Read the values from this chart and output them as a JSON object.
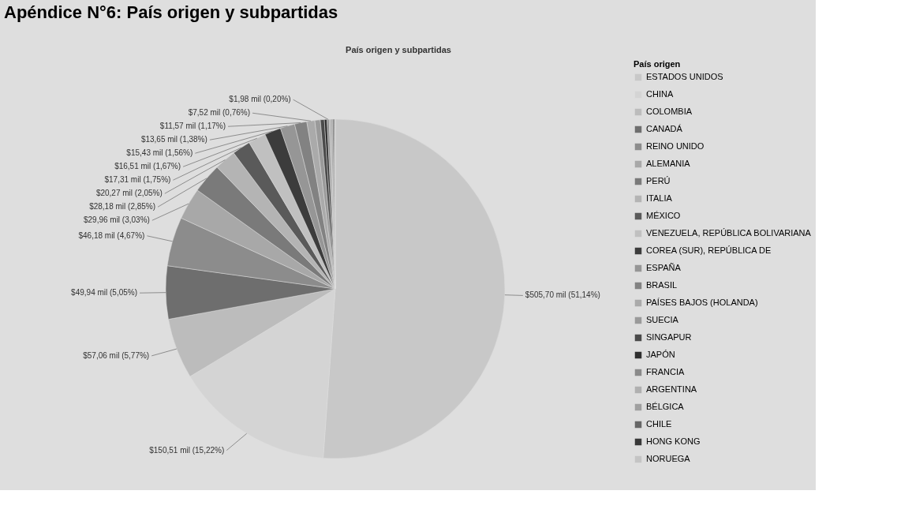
{
  "chart_data": {
    "type": "pie",
    "title": "Apéndice N°6:        País origen y subpartidas",
    "subtitle": "País origen y subpartidas",
    "legend_title": "País origen",
    "legend": "right",
    "categories": [
      "ESTADOS UNIDOS",
      "CHINA",
      "COLOMBIA",
      "CANADÁ",
      "REINO UNIDO",
      "ALEMANIA",
      "PERÚ",
      "ITALIA",
      "MÉXICO",
      "VENEZUELA, REPÚBLICA BOLIVARIANA",
      "COREA (SUR), REPÚBLICA DE",
      "ESPAÑA",
      "BRASIL",
      "PAÍSES BAJOS (HOLANDA)",
      "SUECIA",
      "SINGAPUR",
      "JAPÓN",
      "FRANCIA",
      "ARGENTINA",
      "BÉLGICA",
      "CHILE",
      "HONG KONG",
      "NORUEGA"
    ],
    "values": [
      51.14,
      15.22,
      5.77,
      5.05,
      4.67,
      3.03,
      2.85,
      2.05,
      1.75,
      1.67,
      1.56,
      1.38,
      1.17,
      0.76,
      0.52,
      0.38,
      0.25,
      0.2,
      0.18,
      0.15,
      0.11,
      0.08,
      0.06
    ],
    "value_labels": [
      "$505,70 mil (51,14%)",
      "$150,51 mil (15,22%)",
      "$57,06 mil (5,77%)",
      "$49,94 mil (5,05%)",
      "$46,18 mil (4,67%)",
      "$29,96 mil (3,03%)",
      "$28,18 mil (2,85%)",
      "$20,27 mil (2,05%)",
      "$17,31 mil (1,75%)",
      "$16,51 mil (1,67%)",
      "$15,43 mil (1,56%)",
      "$13,65 mil (1,38%)",
      "$11,57 mil (1,17%)",
      "$7,52 mil (0,76%)",
      null,
      null,
      null,
      "$1,98 mil (0,20%)",
      null,
      null,
      null,
      null,
      null
    ],
    "colors": [
      "#c8c8c8",
      "#d4d4d4",
      "#bcbcbc",
      "#6e6e6e",
      "#8c8c8c",
      "#a8a8a8",
      "#7a7a7a",
      "#b4b4b4",
      "#5a5a5a",
      "#c0c0c0",
      "#3c3c3c",
      "#969696",
      "#828282",
      "#aaaaaa",
      "#9a9a9a",
      "#4a4a4a",
      "#2e2e2e",
      "#8a8a8a",
      "#b0b0b0",
      "#a0a0a0",
      "#666666",
      "#383838",
      "#c4c4c4"
    ]
  }
}
